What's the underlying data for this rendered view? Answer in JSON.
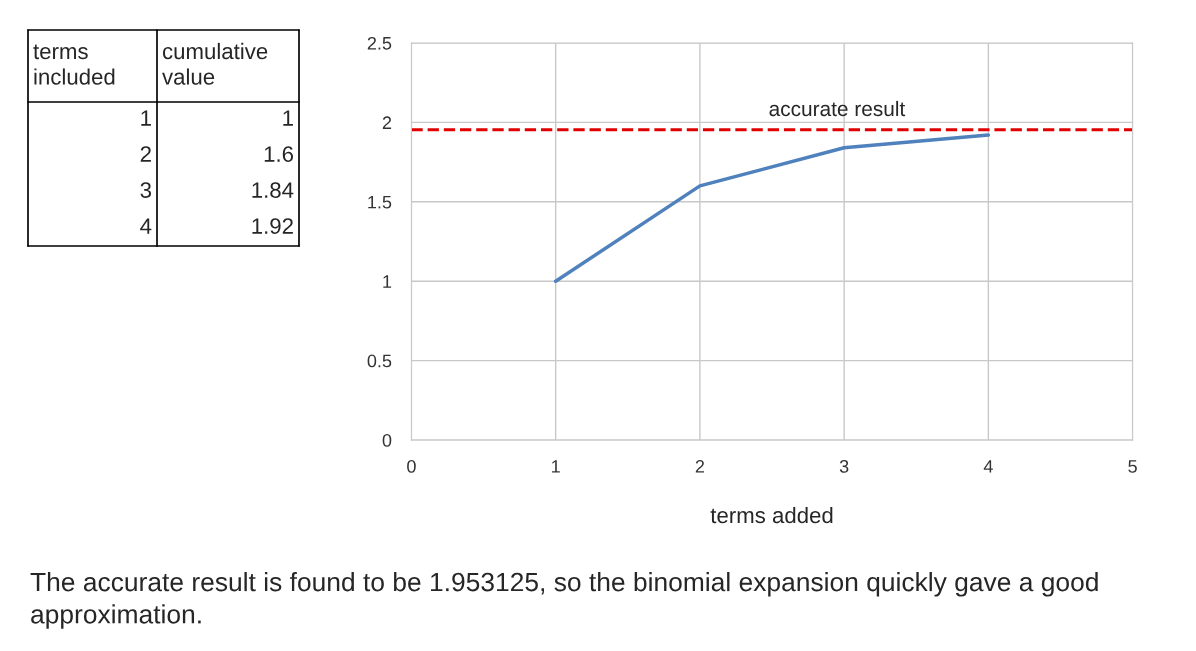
{
  "chart_data": [
    {
      "type": "other",
      "categories": [
        "1",
        "2",
        "3",
        "4"
      ],
      "values": [
        1,
        1.6,
        1.84,
        1.92
      ],
      "data_labels": true,
      "annotations": [
        "terms\nincluded",
        "cumulative\nvalue"
      ]
    },
    {
      "type": "line",
      "xlabel": "terms added",
      "x": [
        1,
        2,
        3,
        4
      ],
      "series": [
        {
          "color": "#4f81bd",
          "values": [
            1,
            1.6,
            1.84,
            1.92
          ]
        }
      ],
      "xlim": [
        0,
        5
      ],
      "xticks": [
        0,
        1,
        2,
        3,
        4,
        5
      ],
      "ylim": [
        0,
        2.5
      ],
      "yticks": [
        0,
        0.5,
        1,
        1.5,
        2,
        2.5
      ],
      "grid": true,
      "marker": "none",
      "line_style": "solid",
      "ref_lines": [
        {
          "axis": "y",
          "value": 1.953125,
          "label": "accurate result",
          "color": "#e00000",
          "line_style": "dashed"
        }
      ],
      "annotations": [
        "The accurate result is found to be 1.953125, so the binomial expansion quickly gave a good\napproximation."
      ]
    }
  ]
}
